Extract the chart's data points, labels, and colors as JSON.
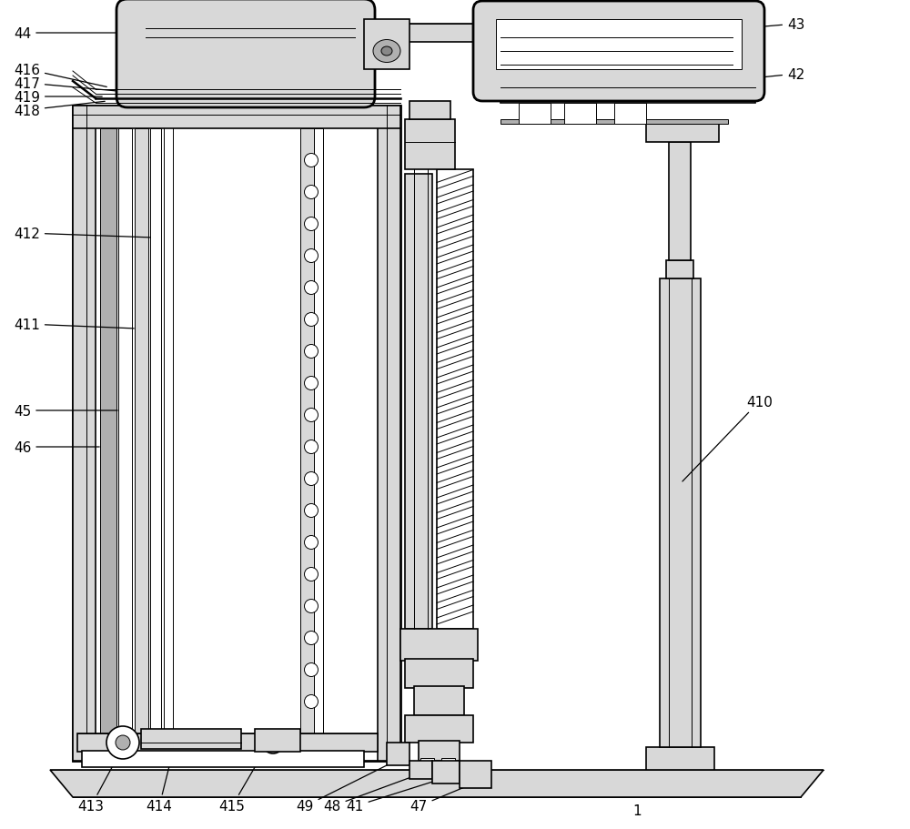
{
  "bg": "#ffffff",
  "lc": "#000000",
  "gray1": "#d8d8d8",
  "gray2": "#b0b0b0",
  "gray3": "#888888",
  "lw": 1.2,
  "lw_t": 0.7,
  "lw_k": 2.0
}
